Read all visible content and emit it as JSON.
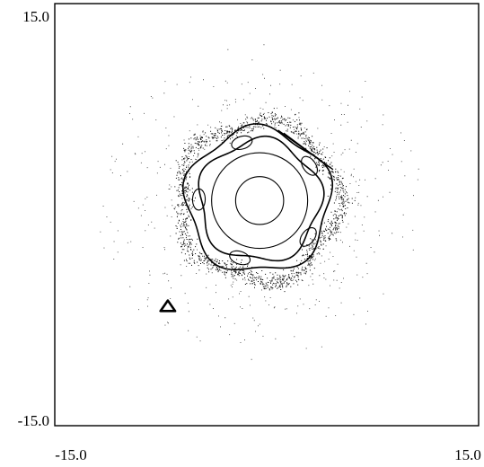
{
  "chart_data": {
    "type": "scatter",
    "title": "",
    "xlabel": "",
    "ylabel": "",
    "xlim": [
      -15.0,
      15.0
    ],
    "ylim": [
      -15.0,
      15.0
    ],
    "x_tick_labels": [
      "-15.0",
      "15.0"
    ],
    "y_tick_labels": [
      "15.0",
      "-15.0"
    ],
    "grid": false,
    "legend": "none",
    "color": "#000000",
    "description_series": [
      {
        "kind": "closed-orbit",
        "shape": "circle",
        "center": [
          -0.5,
          1.0
        ],
        "radius": 1.7
      },
      {
        "kind": "closed-orbit",
        "shape": "circle",
        "center": [
          -0.5,
          1.0
        ],
        "radius": 3.4
      },
      {
        "kind": "closed-orbit",
        "shape": "rounded-pentagon",
        "center": [
          -0.5,
          1.0
        ],
        "radius": 4.3,
        "rotation_deg": 10
      },
      {
        "kind": "closed-orbit",
        "shape": "rounded-pentagon",
        "center": [
          -0.6,
          1.0
        ],
        "radius": 5.1,
        "rotation_deg": 20
      },
      {
        "kind": "island-chain",
        "count": 5,
        "center": [
          -0.5,
          1.0
        ],
        "orbit_radius": 4.3,
        "island_rx": 0.75,
        "island_ry": 0.45,
        "phase_deg": 35
      },
      {
        "kind": "chaotic-band",
        "center": [
          -0.6,
          1.0
        ],
        "radius": 5.6,
        "spread": 0.6,
        "points": 1400
      },
      {
        "kind": "scatter-halo",
        "center": [
          -0.5,
          0.8
        ],
        "radius_min": 5.5,
        "radius_max": 11.5,
        "points": 500
      },
      {
        "kind": "segment",
        "from": [
          0.8,
          6.0
        ],
        "to": [
          4.7,
          3.2
        ]
      },
      {
        "kind": "segment",
        "from": [
          1.2,
          5.8
        ],
        "to": [
          4.4,
          3.4
        ]
      },
      {
        "kind": "closed-orbit",
        "shape": "triangle",
        "center": [
          -7.0,
          -6.6
        ],
        "radius": 0.5
      }
    ]
  }
}
